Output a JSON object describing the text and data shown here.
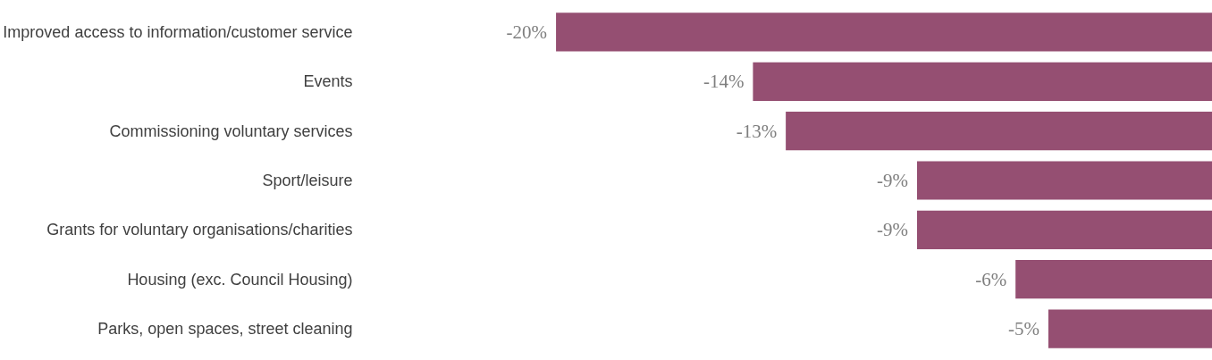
{
  "chart_data": {
    "type": "bar",
    "orientation": "horizontal",
    "categories": [
      "Improved access to information/customer service",
      "Events",
      "Commissioning voluntary services",
      "Sport/leisure",
      "Grants for voluntary organisations/charities",
      "Housing (exc. Council Housing)",
      "Parks, open spaces, street cleaning"
    ],
    "values": [
      -20,
      -14,
      -13,
      -9,
      -9,
      -6,
      -5
    ],
    "value_labels": [
      "-20%",
      "-14%",
      "-13%",
      "-9%",
      "-9%",
      "-6%",
      "-5%"
    ],
    "color": "#954f72",
    "grid": false
  }
}
